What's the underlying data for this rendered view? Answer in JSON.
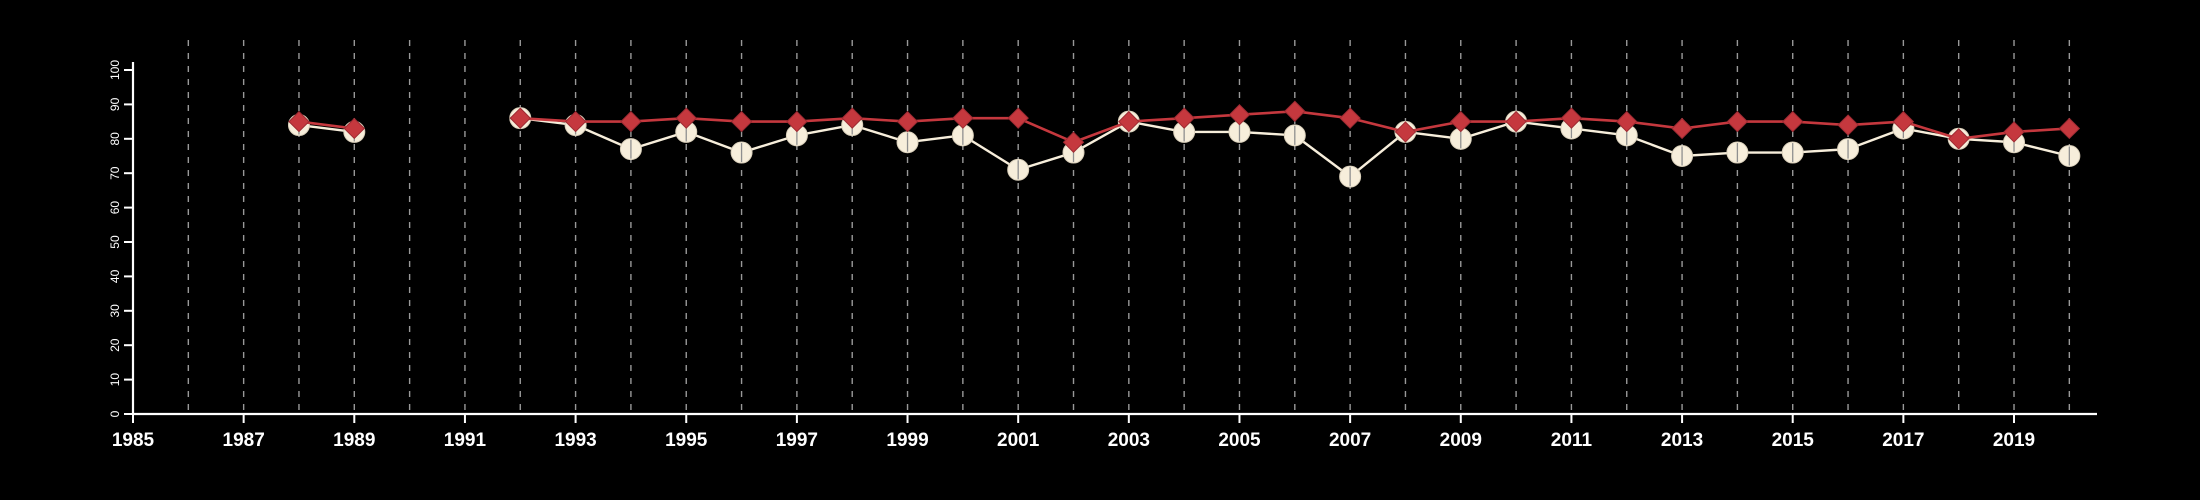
{
  "figure": {
    "background": "#000000"
  },
  "colors": {
    "axis": "#ffffff",
    "tick_label": "#ffffff",
    "gridline": "#999999",
    "red_series": "#c5383e",
    "red_series_stroke": "#9e2b33",
    "cream_series": "#f7eedb",
    "cream_series_stroke": "#d9cfba",
    "circle_inner_line": "#8f8f8f"
  },
  "chart_data": {
    "type": "line",
    "title": "",
    "xlabel": "",
    "ylabel": "",
    "grid": "vertical-dashed",
    "legend": "none",
    "xlim": [
      1985,
      2020.5
    ],
    "ylim": [
      0,
      100
    ],
    "x_ticks": [
      1985,
      1987,
      1989,
      1991,
      1993,
      1995,
      1997,
      1999,
      2001,
      2003,
      2005,
      2007,
      2009,
      2011,
      2013,
      2015,
      2017,
      2019
    ],
    "y_ticks": [
      0,
      10,
      20,
      30,
      40,
      50,
      60,
      70,
      80,
      90,
      100
    ],
    "x": [
      1988,
      1989,
      1992,
      1993,
      1994,
      1995,
      1996,
      1997,
      1998,
      1999,
      2000,
      2001,
      2002,
      2003,
      2004,
      2005,
      2006,
      2007,
      2008,
      2009,
      2010,
      2011,
      2012,
      2013,
      2014,
      2015,
      2016,
      2017,
      2018,
      2019,
      2020
    ],
    "series": [
      {
        "name": "cream-circle-series",
        "marker": "circle",
        "color": "#f7eedb",
        "values": [
          84,
          82,
          86,
          84,
          77,
          82,
          76,
          81,
          84,
          79,
          81,
          71,
          76,
          85,
          82,
          82,
          81,
          69,
          82,
          80,
          85,
          83,
          81,
          75,
          76,
          76,
          77,
          83,
          80,
          79,
          75
        ]
      },
      {
        "name": "red-diamond-series",
        "marker": "diamond",
        "color": "#c5383e",
        "values": [
          85,
          83,
          86,
          85,
          85,
          86,
          85,
          85,
          86,
          85,
          86,
          86,
          79,
          85,
          86,
          87,
          88,
          86,
          82,
          85,
          85,
          86,
          85,
          83,
          85,
          85,
          84,
          85,
          80,
          82,
          83
        ]
      }
    ]
  }
}
